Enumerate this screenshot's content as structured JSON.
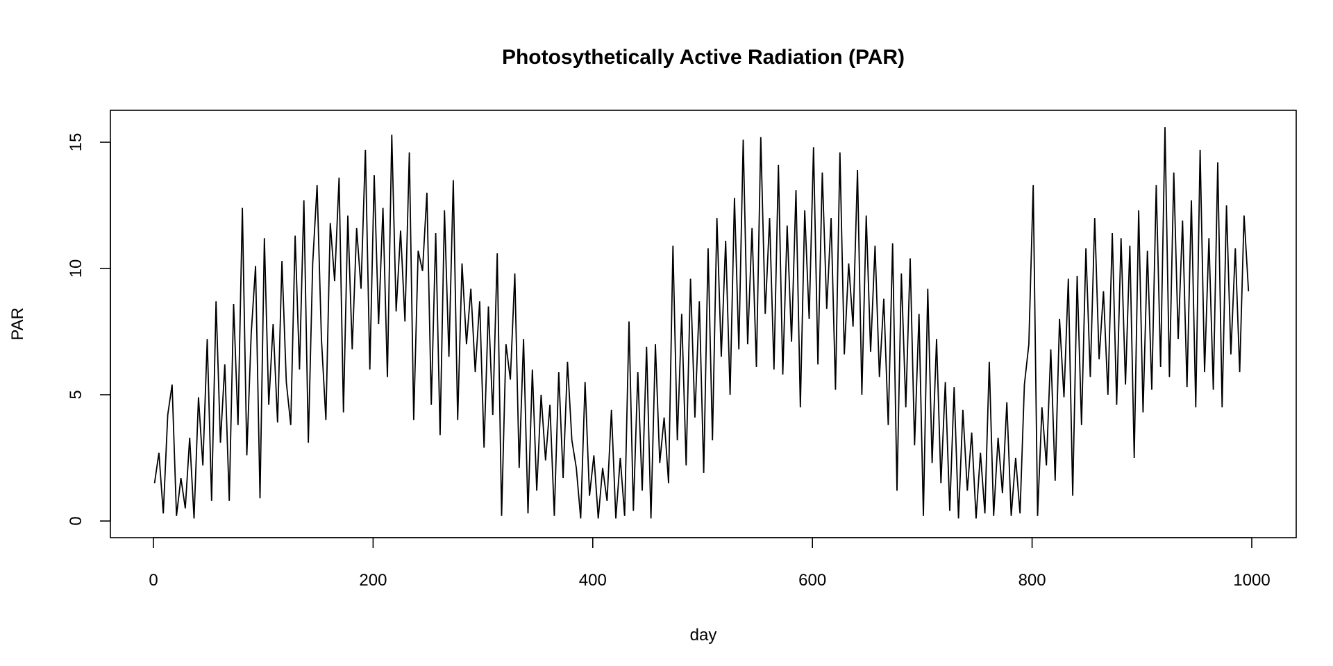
{
  "chart_data": {
    "type": "line",
    "title": "Photosythetically Active Radiation (PAR)",
    "xlabel": "day",
    "ylabel": "PAR",
    "xlim": [
      0,
      1000
    ],
    "ylim": [
      0,
      15.6
    ],
    "x_ticks": [
      0,
      200,
      400,
      600,
      800,
      1000
    ],
    "x_tick_labels": [
      "0",
      "200",
      "400",
      "600",
      "800",
      "1000"
    ],
    "y_ticks": [
      0,
      5,
      10,
      15
    ],
    "y_tick_labels": [
      "0",
      "5",
      "10",
      "15"
    ],
    "grid": false,
    "line_color": "#000000",
    "x_start": 1,
    "x_step": 4,
    "values": [
      1.5,
      2.7,
      0.3,
      4.2,
      5.4,
      0.2,
      1.7,
      0.5,
      3.3,
      0.1,
      4.9,
      2.2,
      7.2,
      0.8,
      8.7,
      3.1,
      6.2,
      0.8,
      8.6,
      3.8,
      12.4,
      2.6,
      7.4,
      10.1,
      0.9,
      11.2,
      4.6,
      7.8,
      3.9,
      10.3,
      5.5,
      3.8,
      11.3,
      6.0,
      12.7,
      3.1,
      10.2,
      13.3,
      7.2,
      4.0,
      11.8,
      9.5,
      13.6,
      4.3,
      12.1,
      6.8,
      11.6,
      9.2,
      14.7,
      6.0,
      13.7,
      7.8,
      12.4,
      5.7,
      15.3,
      8.3,
      11.5,
      7.9,
      14.6,
      4.0,
      10.7,
      9.9,
      13.0,
      4.6,
      11.4,
      3.4,
      12.3,
      6.5,
      13.5,
      4.0,
      10.2,
      7.0,
      9.2,
      5.9,
      8.7,
      2.9,
      8.5,
      4.2,
      10.6,
      0.2,
      7.0,
      5.6,
      9.8,
      2.1,
      7.2,
      0.3,
      6.0,
      1.2,
      5.0,
      2.4,
      4.6,
      0.2,
      5.9,
      1.7,
      6.3,
      3.2,
      2.1,
      0.1,
      5.5,
      1.0,
      2.6,
      0.1,
      2.1,
      0.8,
      4.4,
      0.1,
      2.5,
      0.2,
      7.9,
      0.4,
      5.9,
      1.2,
      6.9,
      0.1,
      7.0,
      2.3,
      4.1,
      1.5,
      10.9,
      3.2,
      8.2,
      2.2,
      9.6,
      4.1,
      8.7,
      1.9,
      10.8,
      3.2,
      12.0,
      6.5,
      11.1,
      5.0,
      12.8,
      6.8,
      15.1,
      7.0,
      11.6,
      6.1,
      15.2,
      8.2,
      12.0,
      6.0,
      14.1,
      5.8,
      11.7,
      7.1,
      13.1,
      4.5,
      12.3,
      8.0,
      14.8,
      6.2,
      13.8,
      8.4,
      12.0,
      5.2,
      14.6,
      6.6,
      10.2,
      7.7,
      13.9,
      5.0,
      12.1,
      6.7,
      10.9,
      5.7,
      8.8,
      3.8,
      11.0,
      1.2,
      9.8,
      4.5,
      10.4,
      3.0,
      8.2,
      0.2,
      9.2,
      2.3,
      7.2,
      1.5,
      5.5,
      0.4,
      5.3,
      0.1,
      4.4,
      1.2,
      3.5,
      0.1,
      2.7,
      0.3,
      6.3,
      0.2,
      3.3,
      1.1,
      4.7,
      0.2,
      2.5,
      0.3,
      5.4,
      7.0,
      13.3,
      0.2,
      4.5,
      2.2,
      6.8,
      1.6,
      8.0,
      4.9,
      9.6,
      1.0,
      9.7,
      3.8,
      10.8,
      5.7,
      12.0,
      6.4,
      9.1,
      5.0,
      11.4,
      4.6,
      11.2,
      5.4,
      10.9,
      2.5,
      12.3,
      4.3,
      10.7,
      5.2,
      13.3,
      6.1,
      15.6,
      5.7,
      13.8,
      7.2,
      11.9,
      5.3,
      12.7,
      4.5,
      14.7,
      5.9,
      11.2,
      5.2,
      14.2,
      4.5,
      12.5,
      6.6,
      10.8,
      5.9,
      12.1,
      9.1
    ]
  }
}
